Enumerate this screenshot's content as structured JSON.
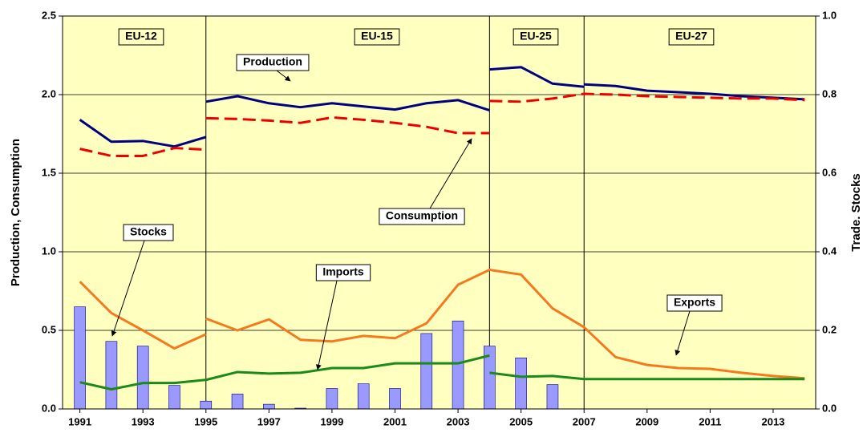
{
  "chart_data": {
    "type": "combo",
    "ylabel": "Production, Consumption",
    "y2label": "Trade. Stocks",
    "xlim": [
      1990.45,
      2014.35
    ],
    "xticks": [
      1991,
      1993,
      1995,
      1997,
      1999,
      2001,
      2003,
      2005,
      2007,
      2009,
      2011,
      2013
    ],
    "ylim": [
      0,
      2.5
    ],
    "yticks": [
      {
        "value": 0,
        "label": "0.0"
      },
      0.5,
      {
        "value": 1,
        "label": "1.0"
      },
      1.5,
      {
        "value": 2,
        "label": "2.0"
      },
      2.5
    ],
    "y2lim": [
      0,
      1
    ],
    "y2ticks": [
      {
        "value": 0,
        "label": "0.0"
      },
      0.2,
      0.4,
      0.6,
      0.8,
      {
        "value": 1,
        "label": "1.0"
      }
    ],
    "grid": true,
    "background": "#ffffc0",
    "dividers": [
      1995,
      2004,
      2007
    ],
    "eras": [
      "EU-12",
      "EU-15",
      "EU-25",
      "EU-27"
    ],
    "series": [
      {
        "name": "Stocks",
        "type": "bar",
        "axis": "y2",
        "color": "#9999ff",
        "x": [
          1991,
          1992,
          1993,
          1994,
          1995,
          1996,
          1997,
          1998,
          1999,
          2000,
          2001,
          2002,
          2003,
          2004,
          2005,
          2006
        ],
        "values": [
          0.26,
          0.172,
          0.16,
          0.06,
          0.02,
          0.038,
          0.012,
          0.002,
          0.052,
          0.064,
          0.052,
          0.192,
          0.224,
          0.16,
          0.13,
          0.062
        ]
      },
      {
        "name": "Production",
        "type": "line",
        "axis": "y",
        "color": "#000080",
        "segments": [
          {
            "x": [
              1991,
              1992,
              1993,
              1994,
              1995
            ],
            "values": [
              1.84,
              1.7,
              1.705,
              1.67,
              1.73
            ]
          },
          {
            "x": [
              1995,
              1996,
              1997,
              1998,
              1999,
              2000,
              2001,
              2002,
              2003,
              2004
            ],
            "values": [
              1.955,
              1.99,
              1.945,
              1.92,
              1.945,
              1.925,
              1.905,
              1.945,
              1.965,
              1.9
            ]
          },
          {
            "x": [
              2004,
              2005,
              2006,
              2007
            ],
            "values": [
              2.16,
              2.175,
              2.07,
              2.05
            ]
          },
          {
            "x": [
              2007,
              2008,
              2009,
              2010,
              2011,
              2012,
              2013,
              2014
            ],
            "values": [
              2.065,
              2.055,
              2.025,
              2.015,
              2.005,
              1.99,
              1.98,
              1.97
            ]
          }
        ]
      },
      {
        "name": "Consumption",
        "type": "line",
        "axis": "y",
        "color": "#ee0000",
        "dashed": true,
        "segments": [
          {
            "x": [
              1991,
              1992,
              1993,
              1994,
              1995
            ],
            "values": [
              1.655,
              1.61,
              1.61,
              1.66,
              1.65
            ]
          },
          {
            "x": [
              1995,
              1996,
              1997,
              1998,
              1999,
              2000,
              2001,
              2002,
              2003,
              2004
            ],
            "values": [
              1.85,
              1.845,
              1.835,
              1.82,
              1.855,
              1.84,
              1.82,
              1.795,
              1.755,
              1.755
            ]
          },
          {
            "x": [
              2004,
              2005,
              2006,
              2007,
              2008,
              2009,
              2010,
              2011,
              2012,
              2013,
              2014
            ],
            "values": [
              1.96,
              1.955,
              1.975,
              2.005,
              2.0,
              1.99,
              1.985,
              1.98,
              1.975,
              1.975,
              1.965
            ]
          }
        ]
      },
      {
        "name": "Exports",
        "type": "line",
        "axis": "y2",
        "color": "#f47a20",
        "segments": [
          {
            "x": [
              1991,
              1992,
              1993,
              1994,
              1995
            ],
            "values": [
              0.324,
              0.244,
              0.2,
              0.154,
              0.19
            ]
          },
          {
            "x": [
              1995,
              1996,
              1997,
              1998,
              1999,
              2000,
              2001,
              2002,
              2003,
              2004,
              2005,
              2006,
              2007,
              2008,
              2009,
              2010,
              2011,
              2012,
              2013,
              2014
            ],
            "values": [
              0.23,
              0.2,
              0.228,
              0.176,
              0.172,
              0.186,
              0.18,
              0.218,
              0.316,
              0.354,
              0.342,
              0.256,
              0.208,
              0.132,
              0.112,
              0.104,
              0.102,
              0.092,
              0.084,
              0.078
            ]
          }
        ]
      },
      {
        "name": "Imports",
        "type": "line",
        "axis": "y2",
        "color": "#1a8a1a",
        "segments": [
          {
            "x": [
              1991,
              1992,
              1993,
              1994,
              1995,
              1996,
              1997,
              1998,
              1999,
              2000,
              2001,
              2002,
              2003,
              2004
            ],
            "values": [
              0.068,
              0.05,
              0.066,
              0.066,
              0.074,
              0.094,
              0.09,
              0.092,
              0.104,
              0.104,
              0.116,
              0.116,
              0.116,
              0.136
            ]
          },
          {
            "x": [
              2004,
              2005,
              2006,
              2007,
              2008,
              2009,
              2010,
              2011,
              2012,
              2013,
              2014
            ],
            "values": [
              0.092,
              0.082,
              0.084,
              0.076,
              0.076,
              0.076,
              0.076,
              0.076,
              0.076,
              0.076,
              0.076
            ]
          }
        ]
      }
    ]
  }
}
